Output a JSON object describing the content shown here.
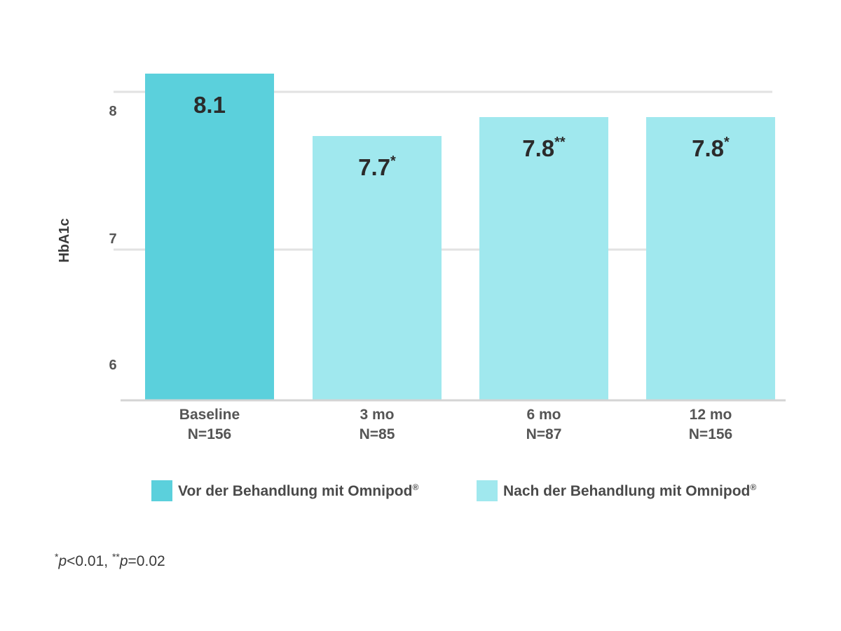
{
  "chart_data": {
    "type": "bar",
    "categories": [
      {
        "line1": "Baseline",
        "line2": "N=156"
      },
      {
        "line1": "3 mo",
        "line2": "N=85"
      },
      {
        "line1": "6 mo",
        "line2": "N=87"
      },
      {
        "line1": "12 mo",
        "line2": "N=156"
      }
    ],
    "values": [
      8.1,
      7.7,
      7.8,
      7.8
    ],
    "value_labels": [
      {
        "value": "8.1",
        "sup": ""
      },
      {
        "value": "7.7",
        "sup": "*"
      },
      {
        "value": "7.8",
        "sup": "**"
      },
      {
        "value": "7.8",
        "sup": "*"
      }
    ],
    "ylabel": "HbA1c",
    "yticks": [
      6,
      7,
      8
    ],
    "ylim": [
      6,
      8
    ],
    "gridlines": true,
    "bar_colors": [
      "#5bd0dc",
      "#a0e8ee",
      "#a0e8ee",
      "#a0e8ee"
    ],
    "legend": {
      "placement": "bottom",
      "items": [
        {
          "label": "Vor der Behandlung mit Omnipod",
          "sup": "®",
          "color": "#5bd0dc"
        },
        {
          "label": "Nach der Behandlung mit Omnipod",
          "sup": "®",
          "color": "#a0e8ee"
        }
      ]
    }
  },
  "footnote": {
    "sup1": "*",
    "p1": "p",
    "text1": "<0.01, ",
    "sup2": "**",
    "p2": "p",
    "text2": "=0.02"
  }
}
